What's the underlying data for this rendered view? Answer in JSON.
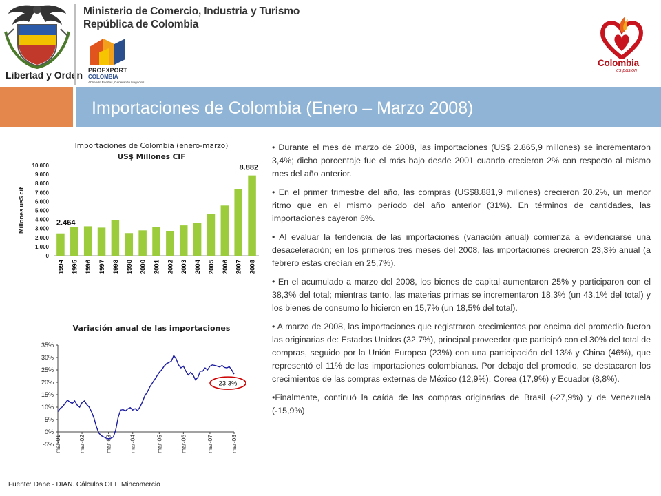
{
  "header": {
    "ministry": "Ministerio de Comercio, Industria y Turismo",
    "republic": "República de Colombia",
    "shield_caption": "Libertad y Orden",
    "proexport_name": "PROEXPORT",
    "proexport_country": "COLOMBIA",
    "proexport_tagline": "Abriendo Puertas, Generando Negocios",
    "brand_word": "Colombia",
    "brand_tagline": "es pasión"
  },
  "title": "Importaciones de Colombia  (Enero – Marzo 2008)",
  "colors": {
    "title_orange": "#e4874d",
    "title_blue": "#8fb4d6",
    "bar_green": "#9ccc3c",
    "line_blue": "#1a1aa0",
    "highlight_red": "#cc0000"
  },
  "chart_data": [
    {
      "type": "bar",
      "title": "Importaciones de Colombia (enero-marzo)",
      "subtitle": "US$ Millones CIF",
      "ylabel": "Millones us$ cif",
      "categories": [
        "1994",
        "1995",
        "1996",
        "1997",
        "1998",
        "1998",
        "2000",
        "2001",
        "2002",
        "2003",
        "2004",
        "2005",
        "2006",
        "2007",
        "2008"
      ],
      "values": [
        2464,
        3150,
        3250,
        3100,
        3950,
        2500,
        2800,
        3150,
        2700,
        3350,
        3600,
        4600,
        5550,
        7350,
        8882
      ],
      "data_labels": {
        "first": "2.464",
        "last": "8.882"
      },
      "yticks": [
        "0",
        "1.000",
        "2.000",
        "3.000",
        "4.000",
        "5.000",
        "6.000",
        "7.000",
        "8.000",
        "9.000",
        "10.000"
      ],
      "ylim": [
        0,
        10000
      ],
      "grid": false
    },
    {
      "type": "line",
      "title": "Variación anual de las importaciones",
      "xticks": [
        "mar-01",
        "mar-02",
        "mar-03",
        "mar-04",
        "mar-05",
        "mar-06",
        "mar-07",
        "mar-08"
      ],
      "yticks": [
        "-5%",
        "0%",
        "5%",
        "10%",
        "15%",
        "20%",
        "25%",
        "30%",
        "35%"
      ],
      "ylim": [
        -5,
        35
      ],
      "annotation": "23,3%",
      "series": [
        {
          "values": [
            8.2,
            9.5,
            10.2,
            11.5,
            12.8,
            12.0,
            11.5,
            12.5,
            10.8,
            10.0,
            11.8,
            12.5,
            11.0,
            10.0,
            8.0,
            5.5,
            2.0,
            -0.5,
            -1.5,
            -2.0,
            -2.5,
            -2.8,
            -2.5,
            -2.0,
            1.0,
            6.0,
            8.8,
            9.0,
            8.5,
            9.3,
            9.8,
            8.8,
            9.4,
            8.6,
            10.0,
            12.0,
            14.5,
            16.0,
            18.0,
            19.5,
            21.0,
            22.5,
            24.0,
            25.0,
            26.5,
            27.5,
            28.0,
            28.5,
            30.8,
            29.5,
            27.0,
            25.8,
            26.5,
            24.5,
            23.0,
            24.0,
            23.0,
            21.0,
            22.0,
            24.5,
            24.5,
            25.8,
            25.0,
            26.5,
            27.0,
            26.8,
            26.5,
            26.2,
            26.8,
            26.0,
            25.8,
            26.3,
            25.0,
            23.3
          ]
        }
      ]
    }
  ],
  "bullets": [
    "• Durante el mes de marzo de 2008, las importaciones (US$ 2.865,9 millones) se incrementaron 3,4%; dicho porcentaje fue el más bajo desde 2001 cuando crecieron 2% con respecto al mismo mes del año anterior.",
    "• En el primer trimestre del año, las compras (US$8.881,9 millones) crecieron 20,2%, un menor ritmo que en el mismo período del año anterior (31%). En términos de cantidades, las importaciones cayeron 6%.",
    "• Al evaluar la tendencia de las importaciones (variación anual) comienza a evidenciarse  una desaceleración; en los primeros tres meses del 2008, las importaciones crecieron 23,3% anual (a febrero estas crecían en 25,7%).",
    "• En el acumulado a marzo del 2008, los bienes de capital aumentaron 25% y participaron con el 38,3% del total; mientras tanto, las materias primas se incrementaron 18,3% (un 43,1% del total) y los bienes de consumo lo hicieron en 15,7% (un 18,5% del total).",
    "• A marzo de 2008, las importaciones que registraron crecimientos por encima del promedio fueron las originarias de: Estados Unidos (32,7%), principal proveedor que participó con el 30% del total de compras, seguido por la Unión Europea (23%) con una participación del 13% y China (46%), que representó el 11% de las importaciones colombianas. Por debajo del promedio, se destacaron los crecimientos de las compras externas de México (12,9%), Corea (17,9%) y Ecuador (8,8%).",
    "•Finalmente, continuó la caída de las compras originarias de Brasil (-27,9%) y de Venezuela (-15,9%)"
  ],
  "footer": "Fuente: Dane - DIAN. Cálculos OEE Mincomercio"
}
